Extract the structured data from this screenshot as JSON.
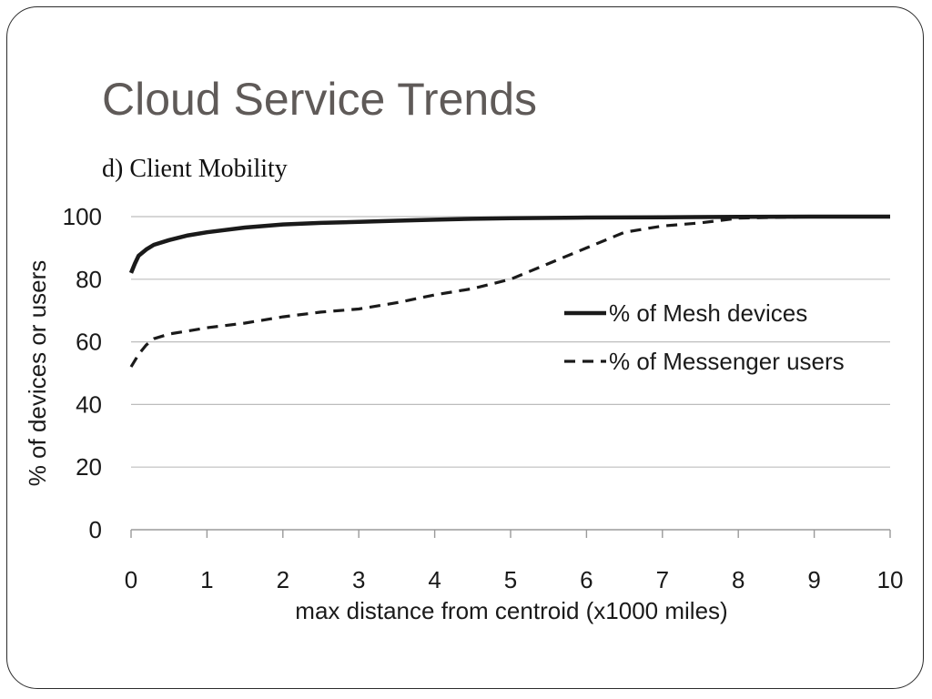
{
  "slide": {
    "title": "Cloud Service Trends",
    "subtitle": "d) Client Mobility"
  },
  "colors": {
    "title": "#5f5a58",
    "series": "#1a1a1a",
    "grid": "#bdbdbd"
  },
  "chart_data": {
    "type": "line",
    "xlabel": "max distance from centroid (x1000 miles)",
    "ylabel": "% of devices or users",
    "xlim": [
      0,
      10
    ],
    "ylim": [
      0,
      100
    ],
    "x_ticks": [
      0,
      1,
      2,
      3,
      4,
      5,
      6,
      7,
      8,
      9,
      10
    ],
    "y_ticks": [
      0,
      20,
      40,
      60,
      80,
      100
    ],
    "grid": "horizontal",
    "legend_position": "right-middle",
    "series": [
      {
        "name": "% of Mesh devices",
        "style": "solid",
        "x": [
          0,
          0.05,
          0.1,
          0.2,
          0.3,
          0.5,
          0.75,
          1,
          1.5,
          2,
          2.5,
          3,
          3.5,
          4,
          4.5,
          5,
          6,
          7,
          8,
          9,
          10
        ],
        "y": [
          82,
          85,
          87.5,
          89.5,
          91,
          92.5,
          94,
          95,
          96.5,
          97.5,
          98,
          98.3,
          98.7,
          99,
          99.3,
          99.5,
          99.7,
          99.8,
          99.9,
          100,
          100
        ]
      },
      {
        "name": "% of Messenger users",
        "style": "dashed",
        "x": [
          0,
          0.1,
          0.2,
          0.3,
          0.5,
          0.75,
          1,
          1.5,
          2,
          2.5,
          3,
          3.5,
          4,
          4.5,
          5,
          5.5,
          6,
          6.5,
          7,
          7.5,
          8,
          9,
          10
        ],
        "y": [
          52,
          56,
          59,
          61,
          62.5,
          63.5,
          64.5,
          66,
          68,
          69.5,
          70.5,
          72.5,
          75,
          77,
          80,
          85,
          90,
          95,
          97,
          98,
          99.5,
          100,
          100
        ]
      }
    ]
  }
}
